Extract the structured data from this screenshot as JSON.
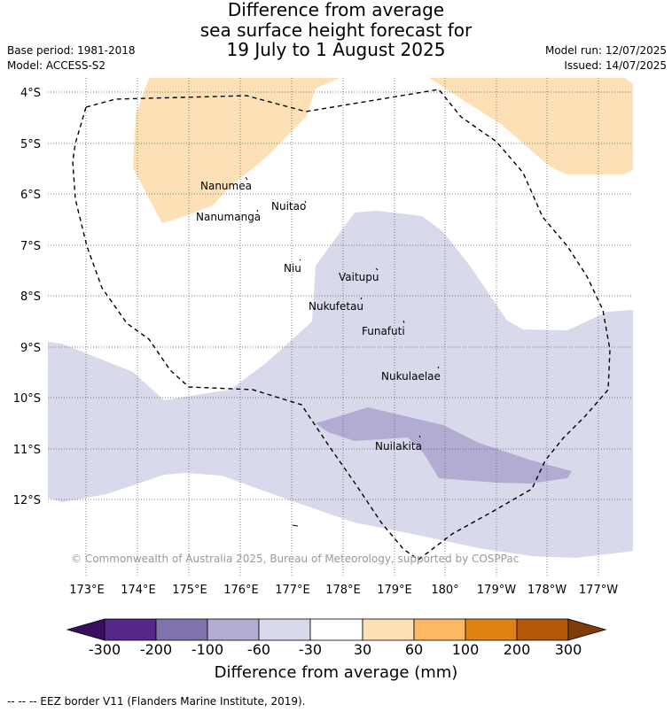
{
  "title": {
    "line1": "Difference from average",
    "line2": "sea surface height forecast for",
    "line3": "19 July to 1 August 2025"
  },
  "meta_left": {
    "base_period": "Base period: 1981-2018",
    "model": "Model: ACCESS-S2"
  },
  "meta_right": {
    "model_run": "Model run: 12/07/2025",
    "issued": "Issued: 14/07/2025"
  },
  "map": {
    "latitude_labels": [
      "4°S",
      "5°S",
      "6°S",
      "7°S",
      "8°S",
      "9°S",
      "10°S",
      "11°S",
      "12°S"
    ],
    "longitude_labels": [
      "173°E",
      "174°E",
      "175°E",
      "176°E",
      "177°E",
      "178°E",
      "179°E",
      "180°",
      "179°W",
      "178°W",
      "177°W"
    ],
    "places": [
      "Nanumea",
      "Nanumanga",
      "Nuitao",
      "Niu",
      "Vaitupu",
      "Nukufetau",
      "Funafuti",
      "Nukulaelae",
      "Nuilakita"
    ],
    "copyright": "© Commonwealth of Australia 2025, Bureau of Meteorology, supported by COSPPac"
  },
  "colorbar": {
    "labels": [
      "-300",
      "-200",
      "-100",
      "-60",
      "-30",
      "30",
      "60",
      "100",
      "200",
      "300"
    ],
    "colors": {
      "below_-300": "#3a0f5f",
      "-300_-200": "#542788",
      "-200_-100": "#8073ac",
      "-100_-60": "#b2abd2",
      "-60_-30": "#d8daeb",
      "-30_30": "#ffffff",
      "30_60": "#fee0b6",
      "60_100": "#fdb863",
      "100_200": "#e08214",
      "200_300": "#b35806",
      "above_300": "#7f3b08"
    },
    "title": "Difference from average (mm)"
  },
  "footer": "--  --  -- EEZ border V11 (Flanders Marine Institute, 2019)."
}
